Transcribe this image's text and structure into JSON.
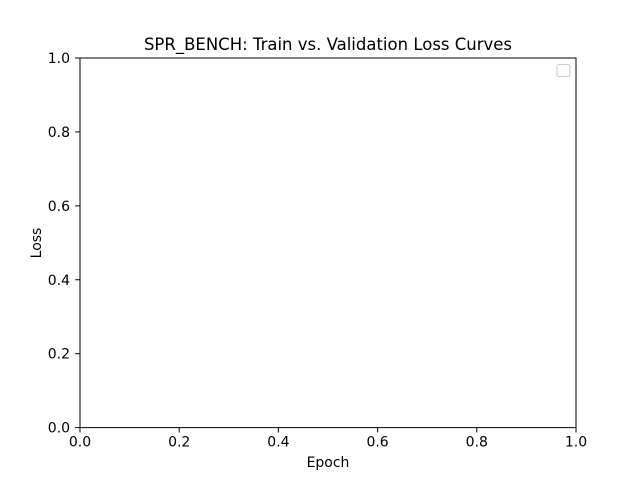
{
  "chart_data": {
    "type": "line",
    "title": "SPR_BENCH: Train vs. Validation Loss Curves",
    "xlabel": "Epoch",
    "ylabel": "Loss",
    "xlim": [
      0,
      1
    ],
    "ylim": [
      0,
      1
    ],
    "x_ticks": [
      "0.0",
      "0.2",
      "0.4",
      "0.6",
      "0.8",
      "1.0"
    ],
    "y_ticks": [
      "0.0",
      "0.2",
      "0.4",
      "0.6",
      "0.8",
      "1.0"
    ],
    "series": [],
    "grid": false,
    "legend": {
      "placement": "upper-right",
      "entries": []
    },
    "colors": {
      "axes": "#000000",
      "background": "#ffffff",
      "legend_border": "#cccccc"
    }
  }
}
